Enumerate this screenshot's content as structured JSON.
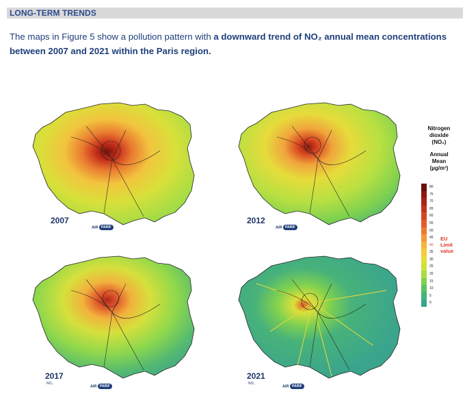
{
  "section": {
    "title": "LONG-TERM TRENDS"
  },
  "intro": {
    "text_1": "The maps in Figure 5 show a pollution pattern with ",
    "text_bold": "a downward trend of NO₂ annual mean concentrations between 2007 and 2021 within the Paris region."
  },
  "maps": [
    {
      "year": "2007",
      "pollutant": "",
      "logo": "AIR",
      "logo_oval": "PARIF"
    },
    {
      "year": "2012",
      "pollutant": "",
      "logo": "AIR",
      "logo_oval": "PARIF"
    },
    {
      "year": "2017",
      "pollutant": "NO₂",
      "logo": "AIR",
      "logo_oval": "PARIF"
    },
    {
      "year": "2021",
      "pollutant": "NO₂",
      "logo": "AIR",
      "logo_oval": "PARIF"
    }
  ],
  "legend": {
    "title_1": "Nitrogen",
    "title_2": "dioxide",
    "title_3": "(NO₂)",
    "subtitle_1": "Annual",
    "subtitle_2": "Mean",
    "subtitle_3": "(µg/m³)",
    "ticks": [
      "80",
      "75",
      "70",
      "65",
      "60",
      "55",
      "50",
      "45",
      "40",
      "35",
      "30",
      "25",
      "20",
      "15",
      "10",
      "5",
      "0"
    ],
    "eu_label_1": "EU",
    "eu_label_2": "Limit",
    "eu_label_3": "value",
    "colors": [
      "#6b0f0a",
      "#8c1a10",
      "#a82416",
      "#c2331c",
      "#d64522",
      "#e35d2a",
      "#ec7a32",
      "#f29a3a",
      "#f5b43e",
      "#f3cc3e",
      "#e8db3c",
      "#cfe23c",
      "#a9dd44",
      "#7fd150",
      "#59c266",
      "#44b37c",
      "#3aa58c"
    ]
  }
}
